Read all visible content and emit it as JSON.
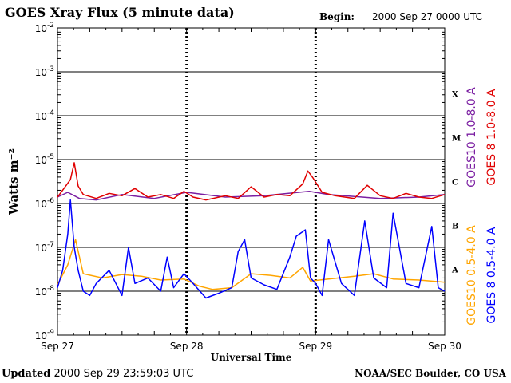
{
  "header": {
    "title": "GOES Xray Flux (5 minute data)",
    "begin_label": "Begin:",
    "begin_value": "2000 Sep 27 0000 UTC"
  },
  "footer": {
    "updated_label": "Updated",
    "updated_value": "2000 Sep 29 23:59:03 UTC",
    "credit": "NOAA/SEC Boulder, CO USA"
  },
  "colors": {
    "goes10_long": "#7b1fa2",
    "goes8_long": "#e00000",
    "goes10_short": "#ffa500",
    "goes8_short": "#0000ff"
  },
  "chart_data": {
    "type": "line",
    "ylabel": "Watts m⁻²",
    "xlabel": "Universal Time",
    "yscale": "log",
    "ylim": [
      1e-09,
      0.01
    ],
    "y_ticks": [
      {
        "base": "10",
        "exp": "-2"
      },
      {
        "base": "10",
        "exp": "-3"
      },
      {
        "base": "10",
        "exp": "-4"
      },
      {
        "base": "10",
        "exp": "-5"
      },
      {
        "base": "10",
        "exp": "-6"
      },
      {
        "base": "10",
        "exp": "-7"
      },
      {
        "base": "10",
        "exp": "-8"
      },
      {
        "base": "10",
        "exp": "-9"
      }
    ],
    "x_ticks": [
      "Sep 27",
      "Sep 28",
      "Sep 29",
      "Sep 30"
    ],
    "xlim_days": [
      0,
      3
    ],
    "flare_classes": [
      {
        "label": "X",
        "low": -4,
        "high": -3
      },
      {
        "label": "M",
        "low": -5,
        "high": -4
      },
      {
        "label": "C",
        "low": -6,
        "high": -5
      },
      {
        "label": "B",
        "low": -7,
        "high": -6
      },
      {
        "label": "A",
        "low": -8,
        "high": -7
      }
    ],
    "series": [
      {
        "name": "GOES10 1.0-8.0 A",
        "key": "goes10_long",
        "x": [
          0,
          0.08,
          0.17,
          0.3,
          0.5,
          0.75,
          1.0,
          1.3,
          1.6,
          1.95,
          2.1,
          2.5,
          2.8,
          3.0
        ],
        "y": [
          1.4e-06,
          1.8e-06,
          1.3e-06,
          1.2e-06,
          1.6e-06,
          1.3e-06,
          1.8e-06,
          1.4e-06,
          1.5e-06,
          1.9e-06,
          1.6e-06,
          1.3e-06,
          1.4e-06,
          1.6e-06
        ]
      },
      {
        "name": "GOES 8 1.0-8.0 A",
        "key": "goes8_long",
        "x": [
          0,
          0.05,
          0.1,
          0.13,
          0.16,
          0.2,
          0.3,
          0.4,
          0.5,
          0.6,
          0.7,
          0.8,
          0.9,
          0.98,
          1.05,
          1.15,
          1.3,
          1.4,
          1.5,
          1.6,
          1.7,
          1.8,
          1.9,
          1.94,
          1.98,
          2.05,
          2.15,
          2.3,
          2.4,
          2.5,
          2.6,
          2.7,
          2.8,
          2.9,
          3.0
        ],
        "y": [
          1.4e-06,
          2.2e-06,
          3.5e-06,
          8.5e-06,
          2.5e-06,
          1.6e-06,
          1.3e-06,
          1.7e-06,
          1.5e-06,
          2.2e-06,
          1.4e-06,
          1.6e-06,
          1.3e-06,
          1.9e-06,
          1.4e-06,
          1.2e-06,
          1.5e-06,
          1.3e-06,
          2.4e-06,
          1.4e-06,
          1.6e-06,
          1.5e-06,
          2.8e-06,
          5.5e-06,
          3.8e-06,
          1.8e-06,
          1.5e-06,
          1.3e-06,
          2.6e-06,
          1.5e-06,
          1.3e-06,
          1.7e-06,
          1.4e-06,
          1.3e-06,
          1.6e-06
        ]
      },
      {
        "name": "GOES10 0.5-4.0 A",
        "key": "goes10_short",
        "x": [
          0,
          0.08,
          0.14,
          0.2,
          0.35,
          0.5,
          0.65,
          0.8,
          0.98,
          1.1,
          1.2,
          1.35,
          1.5,
          1.65,
          1.8,
          1.9,
          1.96,
          2.1,
          2.3,
          2.45,
          2.6,
          2.8,
          3.0
        ],
        "y": [
          1.4e-08,
          4e-08,
          1.5e-07,
          2.5e-08,
          2e-08,
          2.4e-08,
          2.2e-08,
          1.8e-08,
          1.9e-08,
          1.3e-08,
          1.1e-08,
          1.2e-08,
          2.5e-08,
          2.3e-08,
          2e-08,
          3.5e-08,
          1.7e-08,
          1.9e-08,
          2.2e-08,
          2.5e-08,
          1.9e-08,
          1.8e-08,
          1.6e-08
        ]
      },
      {
        "name": "GOES 8 0.5-4.0 A",
        "key": "goes8_short",
        "x": [
          0,
          0.04,
          0.08,
          0.1,
          0.13,
          0.16,
          0.2,
          0.25,
          0.3,
          0.4,
          0.5,
          0.55,
          0.6,
          0.7,
          0.8,
          0.85,
          0.9,
          0.98,
          1.05,
          1.15,
          1.25,
          1.35,
          1.4,
          1.45,
          1.5,
          1.6,
          1.7,
          1.8,
          1.85,
          1.92,
          1.96,
          2.0,
          2.05,
          2.1,
          2.2,
          2.3,
          2.38,
          2.45,
          2.55,
          2.6,
          2.7,
          2.8,
          2.9,
          2.95,
          3.0
        ],
        "y": [
          1.2e-08,
          3e-08,
          2e-07,
          1.2e-06,
          1e-07,
          3e-08,
          1e-08,
          8e-09,
          1.5e-08,
          3e-08,
          8e-09,
          1e-07,
          1.5e-08,
          2e-08,
          1e-08,
          6e-08,
          1.2e-08,
          2.5e-08,
          1.5e-08,
          7e-09,
          9e-09,
          1.2e-08,
          8e-08,
          1.5e-07,
          2e-08,
          1.4e-08,
          1.1e-08,
          6e-08,
          1.8e-07,
          2.5e-07,
          2e-08,
          1.5e-08,
          8e-09,
          1.5e-07,
          1.5e-08,
          8e-09,
          4e-07,
          2e-08,
          1.2e-08,
          6e-07,
          1.5e-08,
          1.2e-08,
          3e-07,
          1.2e-08,
          1e-08
        ]
      }
    ]
  }
}
